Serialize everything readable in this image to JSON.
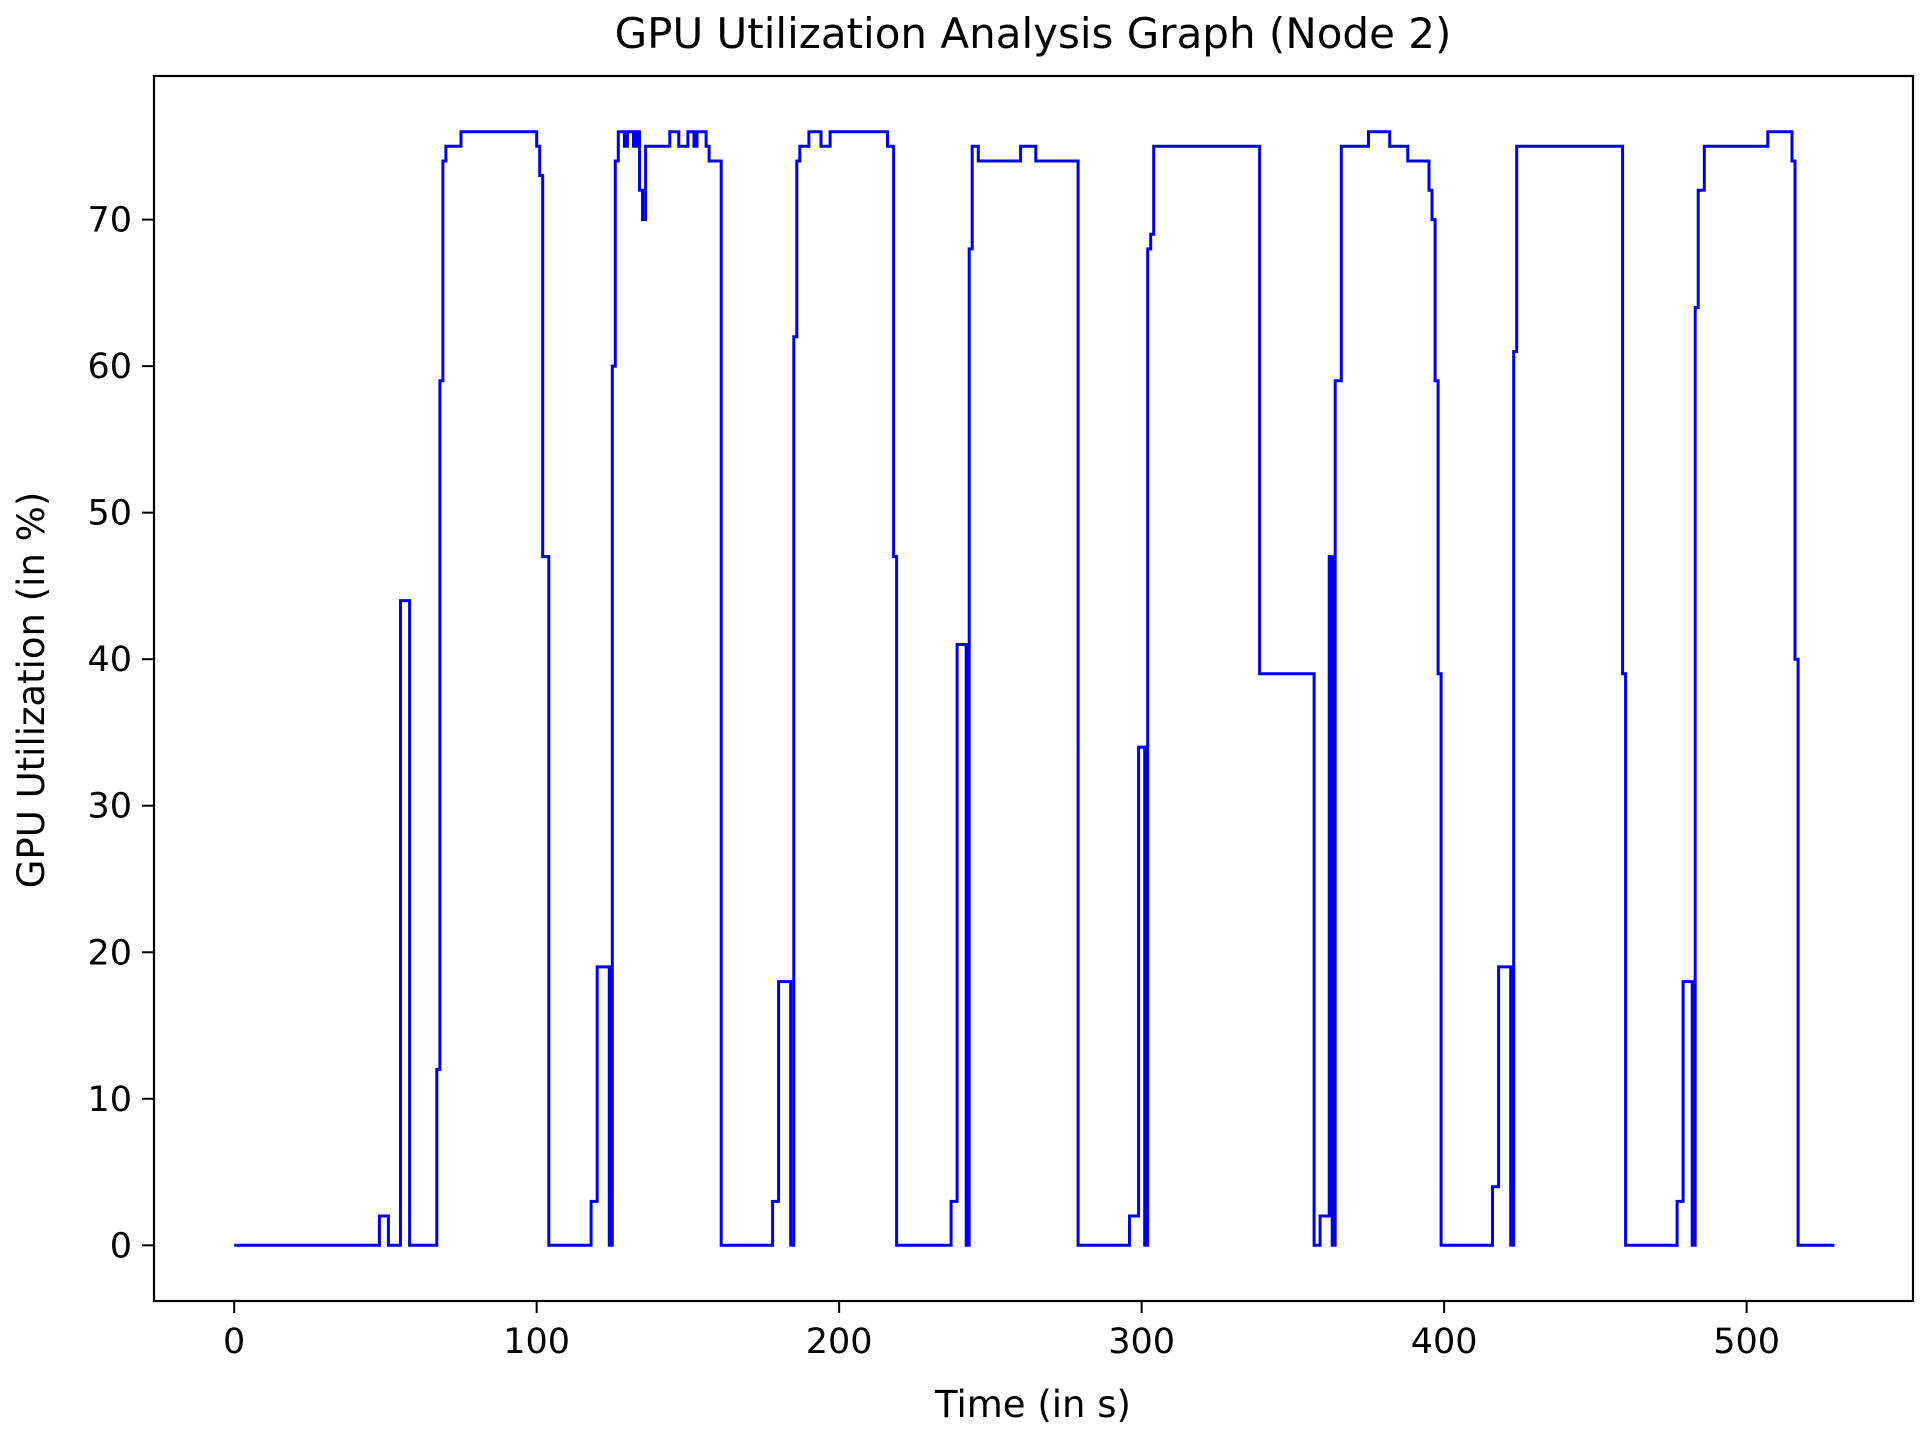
{
  "colors": {
    "series": "#0000ee",
    "axes": "#000000",
    "background": "#ffffff"
  },
  "chart_data": {
    "type": "line",
    "title": "GPU Utilization Analysis Graph (Node 2)",
    "xlabel": "Time (in s)",
    "ylabel": "GPU Utilization (in %)",
    "xlim": [
      -26.5,
      555
    ],
    "ylim": [
      -3.8,
      79.8
    ],
    "xticks": [
      0,
      100,
      200,
      300,
      400,
      500
    ],
    "yticks": [
      0,
      10,
      20,
      30,
      40,
      50,
      60,
      70
    ],
    "grid": false,
    "legend": "none",
    "series": [
      {
        "color": "#0000ee",
        "step": true,
        "x": [
          0,
          48,
          51,
          55,
          58,
          67,
          68,
          69,
          70,
          75,
          85,
          100,
          101,
          102,
          104,
          118,
          120,
          121,
          124,
          125,
          126,
          127,
          129,
          130,
          132,
          133,
          134,
          135,
          136,
          141,
          144,
          147,
          150,
          152,
          153,
          156,
          157,
          158,
          161,
          178,
          180,
          182,
          184,
          185,
          186,
          187,
          190,
          194,
          197,
          200,
          210,
          216,
          218,
          219,
          237,
          239,
          242,
          243,
          244,
          246,
          255,
          260,
          265,
          278,
          279,
          296,
          299,
          301,
          302,
          303,
          304,
          310,
          338,
          339,
          357,
          359,
          362,
          363,
          364,
          366,
          375,
          382,
          388,
          393,
          395,
          396,
          397,
          398,
          399,
          416,
          418,
          420,
          422,
          423,
          424,
          425,
          440,
          459,
          460,
          477,
          479,
          482,
          483,
          484,
          486,
          495,
          507,
          515,
          516,
          517,
          520,
          529
        ],
        "values": [
          0,
          2,
          0,
          44,
          0,
          12,
          59,
          74,
          75,
          76,
          76,
          75,
          73,
          47,
          0,
          3,
          19,
          19,
          0,
          60,
          74,
          76,
          75,
          76,
          75,
          76,
          72,
          70,
          75,
          75,
          76,
          75,
          76,
          75,
          76,
          75,
          74,
          74,
          0,
          3,
          18,
          18,
          0,
          62,
          74,
          75,
          76,
          75,
          76,
          76,
          76,
          75,
          47,
          0,
          3,
          41,
          0,
          68,
          75,
          74,
          74,
          75,
          74,
          74,
          0,
          2,
          34,
          0,
          68,
          69,
          75,
          75,
          75,
          39,
          0,
          2,
          47,
          0,
          59,
          75,
          76,
          75,
          74,
          74,
          72,
          70,
          59,
          39,
          0,
          4,
          19,
          19,
          0,
          61,
          75,
          75,
          75,
          39,
          0,
          3,
          18,
          0,
          64,
          72,
          75,
          75,
          76,
          74,
          40,
          0,
          0,
          0
        ]
      }
    ]
  }
}
